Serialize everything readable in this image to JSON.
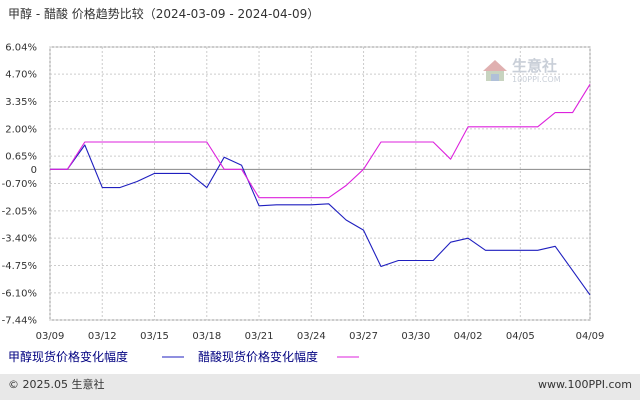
{
  "header": {
    "title": "甲醇 - 醋酸 价格趋势比较（2024-03-09 - 2024-04-09）"
  },
  "logo": {
    "name": "生意社",
    "url": "100PPI.COM"
  },
  "footer": {
    "copyright": "© 2025.05 生意社",
    "site": "www.100PPI.com"
  },
  "colors": {
    "methanol": "#1f1fbf",
    "acetic_acid": "#dd22dd",
    "grid": "#cccccc",
    "footer_bg": "#e8e8e8"
  },
  "chart_data": {
    "type": "line",
    "title": "甲醇 - 醋酸 价格趋势比较（2024-03-09 - 2024-04-09）",
    "ylim": [
      -7.44,
      6.04
    ],
    "y_ticks": [
      "6.04%",
      "4.70%",
      "3.35%",
      "2.00%",
      "0.65%",
      "0",
      "-0.70%",
      "-2.05%",
      "-3.40%",
      "-4.75%",
      "-6.10%",
      "-7.44%"
    ],
    "y_tick_values": [
      6.04,
      4.7,
      3.35,
      2.0,
      0.65,
      0,
      -0.7,
      -2.05,
      -3.4,
      -4.75,
      -6.1,
      -7.44
    ],
    "x_ticks": [
      "03/09",
      "03/12",
      "03/15",
      "03/18",
      "03/21",
      "03/24",
      "03/27",
      "03/30",
      "04/02",
      "04/05",
      "04/09"
    ],
    "x_tick_days": [
      0,
      3,
      6,
      9,
      12,
      15,
      18,
      21,
      24,
      27,
      31
    ],
    "grid": true,
    "legend_position": "bottom-left",
    "series": [
      {
        "name": "甲醇现货价格变化幅度",
        "color": "#1f1fbf",
        "points": [
          [
            0,
            0
          ],
          [
            1,
            0
          ],
          [
            2,
            1.2
          ],
          [
            3,
            -0.9
          ],
          [
            4,
            -0.9
          ],
          [
            5,
            -0.6
          ],
          [
            6,
            -0.2
          ],
          [
            7,
            -0.2
          ],
          [
            8,
            -0.2
          ],
          [
            9,
            -0.9
          ],
          [
            10,
            0.6
          ],
          [
            11,
            0.2
          ],
          [
            12,
            -1.8
          ],
          [
            13,
            -1.75
          ],
          [
            14,
            -1.75
          ],
          [
            15,
            -1.75
          ],
          [
            16,
            -1.7
          ],
          [
            17,
            -2.5
          ],
          [
            18,
            -3.0
          ],
          [
            19,
            -4.8
          ],
          [
            20,
            -4.5
          ],
          [
            21,
            -4.5
          ],
          [
            22,
            -4.5
          ],
          [
            23,
            -3.6
          ],
          [
            24,
            -3.4
          ],
          [
            25,
            -4.0
          ],
          [
            26,
            -4.0
          ],
          [
            27,
            -4.0
          ],
          [
            28,
            -4.0
          ],
          [
            29,
            -3.8
          ],
          [
            30,
            -5.0
          ],
          [
            31,
            -6.2
          ]
        ]
      },
      {
        "name": "醋酸现货价格变化幅度",
        "color": "#dd22dd",
        "points": [
          [
            0,
            0
          ],
          [
            1,
            0
          ],
          [
            2,
            1.35
          ],
          [
            3,
            1.35
          ],
          [
            4,
            1.35
          ],
          [
            5,
            1.35
          ],
          [
            6,
            1.35
          ],
          [
            7,
            1.35
          ],
          [
            8,
            1.35
          ],
          [
            9,
            1.35
          ],
          [
            10,
            0
          ],
          [
            11,
            0
          ],
          [
            12,
            -1.4
          ],
          [
            13,
            -1.4
          ],
          [
            14,
            -1.4
          ],
          [
            15,
            -1.4
          ],
          [
            16,
            -1.4
          ],
          [
            17,
            -0.8
          ],
          [
            18,
            0
          ],
          [
            19,
            1.35
          ],
          [
            20,
            1.35
          ],
          [
            21,
            1.35
          ],
          [
            22,
            1.35
          ],
          [
            23,
            0.5
          ],
          [
            24,
            2.1
          ],
          [
            25,
            2.1
          ],
          [
            26,
            2.1
          ],
          [
            27,
            2.1
          ],
          [
            28,
            2.1
          ],
          [
            29,
            2.8
          ],
          [
            30,
            2.8
          ],
          [
            31,
            4.2
          ]
        ]
      }
    ]
  }
}
